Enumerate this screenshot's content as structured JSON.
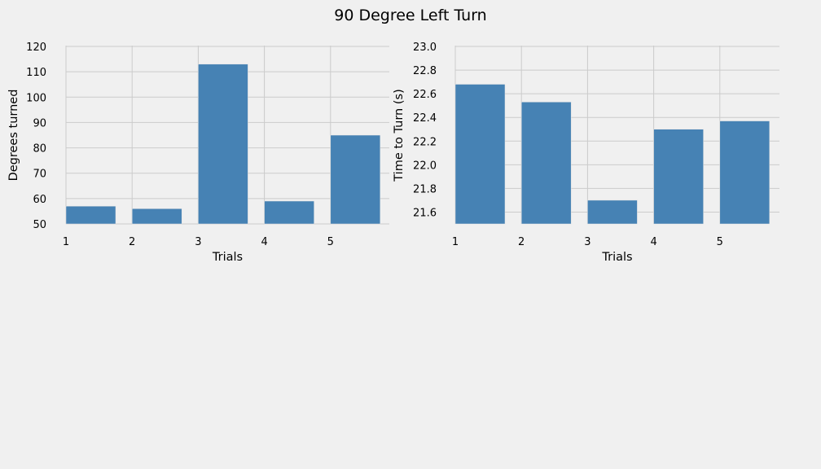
{
  "suptitle": "90 Degree Left Turn",
  "colors": {
    "bar": "#4682b4",
    "background": "#f0f0f0",
    "grid": "#cbcbcb"
  },
  "chart_data": [
    {
      "type": "bar",
      "categories": [
        "1",
        "2",
        "3",
        "4",
        "5"
      ],
      "values": [
        57,
        56,
        113,
        59,
        85
      ],
      "xlabel": "Trials",
      "ylabel": "Degrees turned",
      "ylim": [
        50,
        120
      ],
      "yticks": [
        "50",
        "60",
        "70",
        "80",
        "90",
        "100",
        "110",
        "120"
      ],
      "grid": true
    },
    {
      "type": "bar",
      "categories": [
        "1",
        "2",
        "3",
        "4",
        "5"
      ],
      "values": [
        22.68,
        22.53,
        21.7,
        22.3,
        22.37
      ],
      "xlabel": "Trials",
      "ylabel": "Time to Turn (s)",
      "ylim": [
        21.5,
        23.0
      ],
      "yticks": [
        "21.6",
        "21.8",
        "22.0",
        "22.2",
        "22.4",
        "22.6",
        "22.8",
        "23.0"
      ],
      "grid": true
    }
  ]
}
